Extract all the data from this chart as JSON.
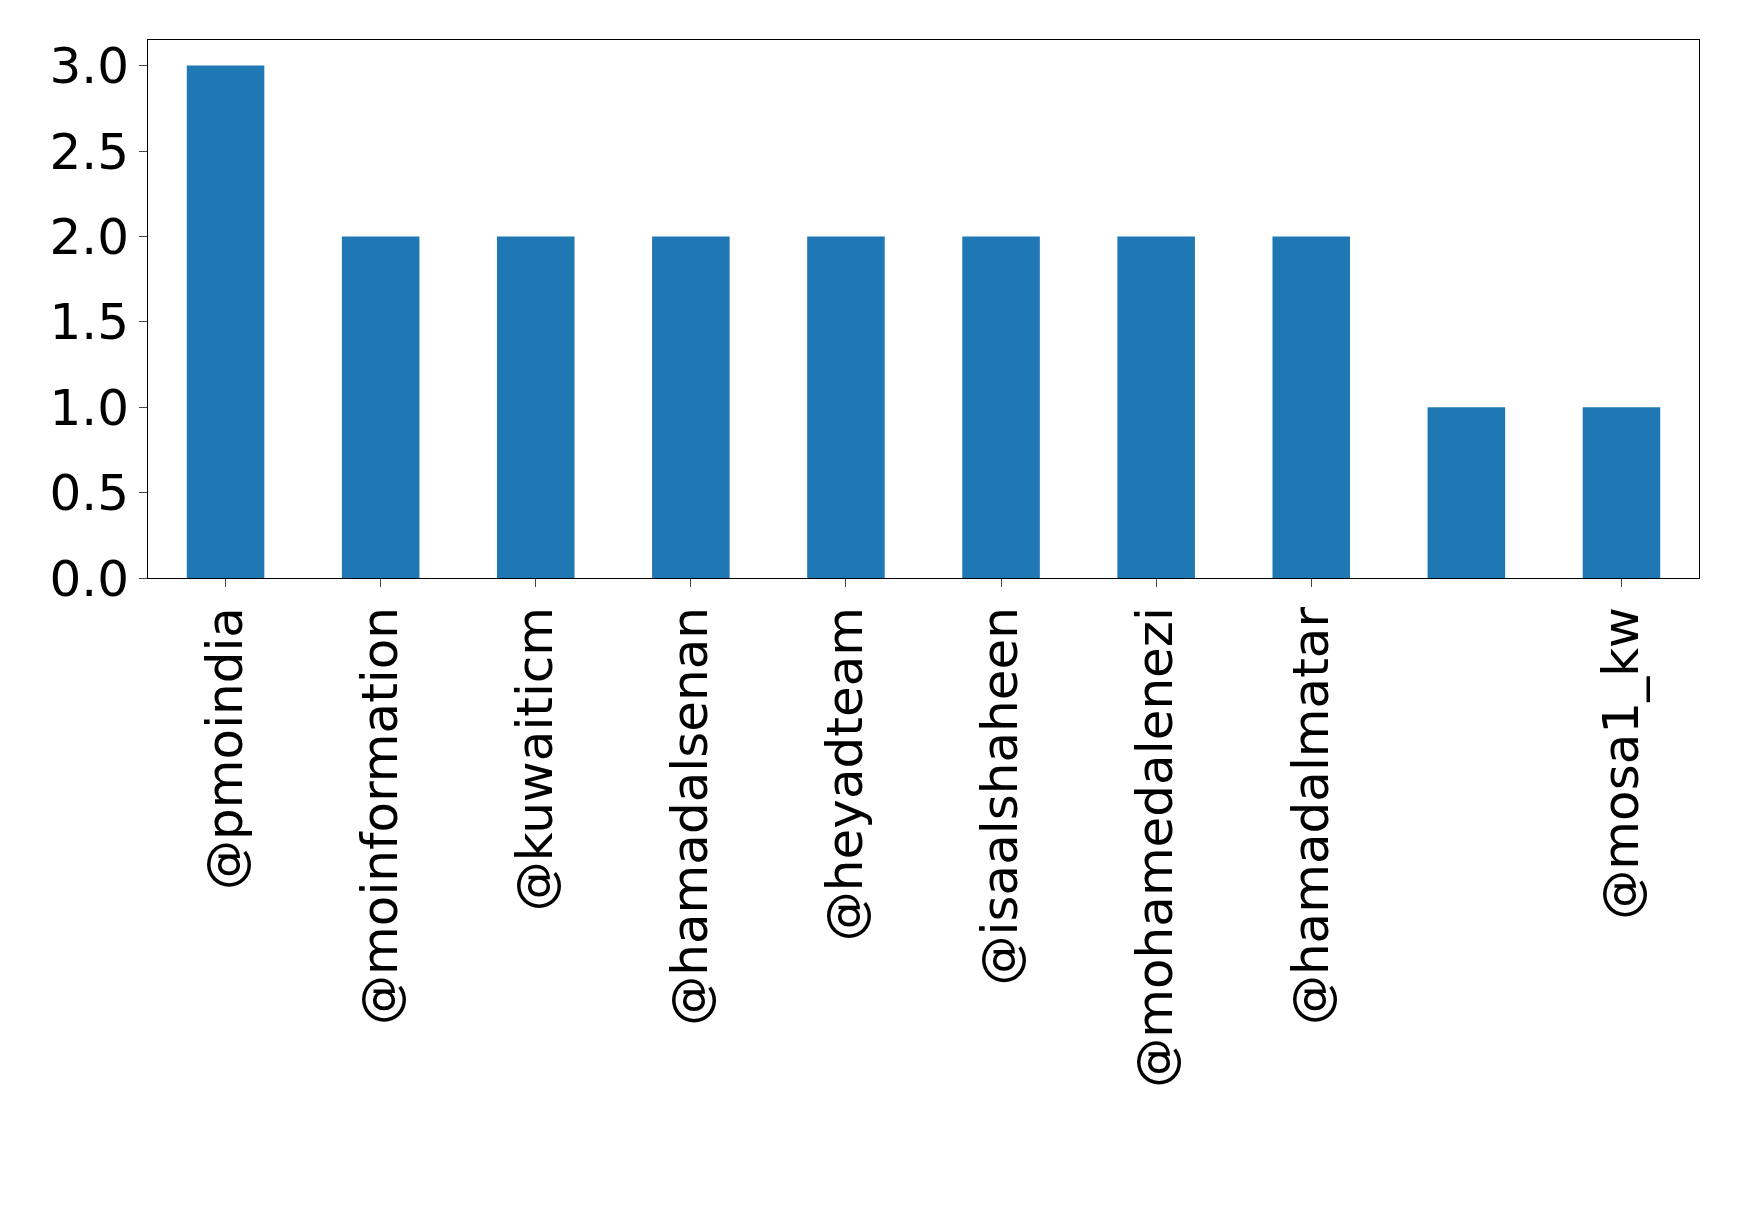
{
  "chart_data": {
    "type": "bar",
    "categories": [
      "@pmoindia",
      "@moinformation",
      "@kuwaiticm",
      "@hamadalsenan",
      "@heyadteam",
      "@isaalshaheen",
      "@mohamedalenezi",
      "@hamadalmatar",
      null,
      "@mosa1_kw"
    ],
    "values": [
      3,
      2,
      2,
      2,
      2,
      2,
      2,
      2,
      1,
      1
    ],
    "color": "#1f77b4",
    "ylim": [
      0,
      3.15
    ],
    "yticks": [
      {
        "value": 0,
        "label": "0.0"
      },
      {
        "value": 0.5,
        "label": "0.5"
      },
      {
        "value": 1,
        "label": "1.0"
      },
      {
        "value": 1.5,
        "label": "1.5"
      },
      {
        "value": 2,
        "label": "2.0"
      },
      {
        "value": 2.5,
        "label": "2.5"
      },
      {
        "value": 3,
        "label": "3.0"
      }
    ],
    "grid": false
  }
}
